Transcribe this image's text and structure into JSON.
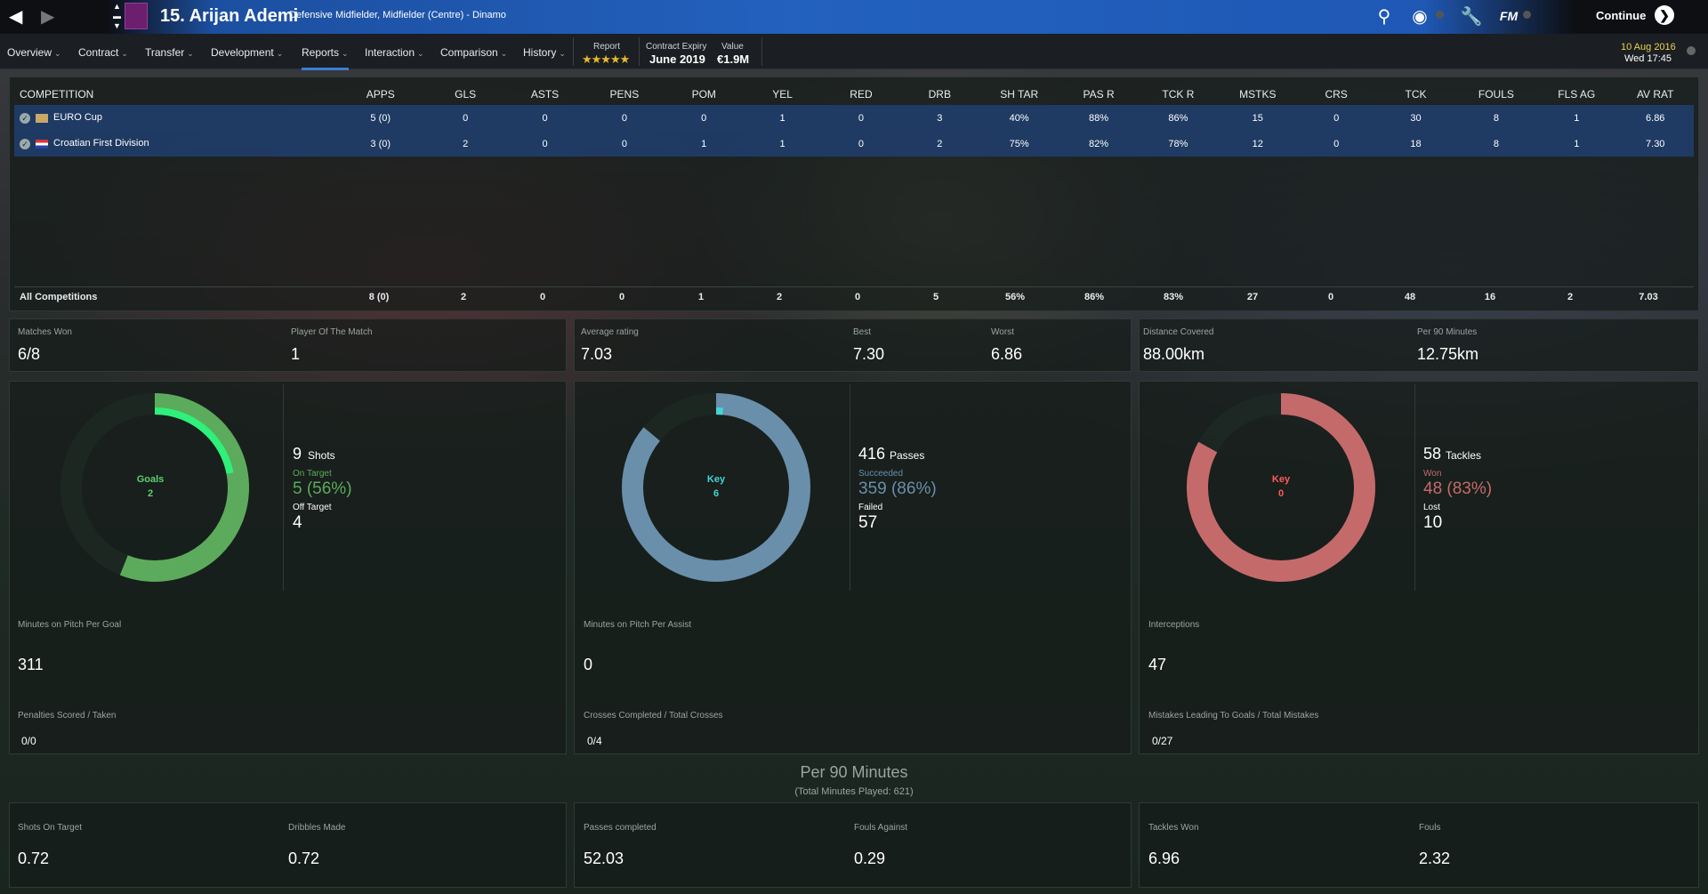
{
  "header": {
    "title": "15. Arijan Ademi",
    "subtitle": "Defensive Midfielder, Midfielder (Centre) - Dinamo",
    "continue_label": "Continue",
    "report_label": "Report",
    "report_stars": "★★★★★",
    "contract_label": "Contract Expiry",
    "contract_value": "June 2019",
    "value_label": "Value",
    "value_value": "€1.9M",
    "date": "10 Aug 2016",
    "time": "Wed 17:45"
  },
  "menu": [
    {
      "label": "Overview"
    },
    {
      "label": "Contract"
    },
    {
      "label": "Transfer"
    },
    {
      "label": "Development"
    },
    {
      "label": "Reports"
    },
    {
      "label": "Interaction"
    },
    {
      "label": "Comparison"
    },
    {
      "label": "History"
    }
  ],
  "table": {
    "headers": [
      "COMPETITION",
      "APPS",
      "GLS",
      "ASTS",
      "PENS",
      "POM",
      "YEL",
      "RED",
      "DRB",
      "SH TAR",
      "PAS R",
      "TCK R",
      "MSTKS",
      "CRS",
      "TCK",
      "FOULS",
      "FLS AG",
      "AV RAT"
    ],
    "rows": [
      [
        "EURO Cup",
        "5 (0)",
        "0",
        "0",
        "0",
        "0",
        "1",
        "0",
        "3",
        "40%",
        "88%",
        "86%",
        "15",
        "0",
        "30",
        "8",
        "1",
        "6.86"
      ],
      [
        "Croatian First Division",
        "3 (0)",
        "2",
        "0",
        "0",
        "1",
        "1",
        "0",
        "2",
        "75%",
        "82%",
        "78%",
        "12",
        "0",
        "18",
        "8",
        "1",
        "7.30"
      ]
    ],
    "total": [
      "All Competitions",
      "8 (0)",
      "2",
      "0",
      "0",
      "1",
      "2",
      "0",
      "5",
      "56%",
      "86%",
      "83%",
      "27",
      "0",
      "48",
      "16",
      "2",
      "7.03"
    ]
  },
  "summary": {
    "matches_won_label": "Matches Won",
    "matches_won": "6/8",
    "potm_label": "Player Of The Match",
    "potm": "1",
    "avg_rating_label": "Average rating",
    "avg_rating": "7.03",
    "best_label": "Best",
    "best": "7.30",
    "worst_label": "Worst",
    "worst": "6.86",
    "distance_label": "Distance Covered",
    "distance": "88.00km",
    "per90_label": "Per 90 Minutes",
    "per90": "12.75km"
  },
  "shooting": {
    "ring_label": "Goals",
    "ring_value": "2",
    "count": "9",
    "count_label": "Shots",
    "on_label": "On Target",
    "on_value": "5 (56%)",
    "off_label": "Off Target",
    "off_value": "4",
    "on_fraction": 0.56,
    "goal_fraction": 0.22,
    "min_label": "Minutes on Pitch Per Goal",
    "min_value": "311",
    "pen_label": "Penalties Scored / Taken",
    "pen_value": "0/0"
  },
  "passing": {
    "ring_label": "Key",
    "ring_value": "6",
    "count": "416",
    "count_label": "Passes",
    "on_label": "Succeeded",
    "on_value": "359 (86%)",
    "off_label": "Failed",
    "off_value": "57",
    "on_fraction": 0.86,
    "key_fraction": 0.014,
    "min_label": "Minutes on Pitch Per Assist",
    "min_value": "0",
    "cross_label": "Crosses Completed / Total Crosses",
    "cross_value": "0/4"
  },
  "tackling": {
    "ring_label": "Key",
    "ring_value": "0",
    "count": "58",
    "count_label": "Tackles",
    "on_label": "Won",
    "on_value": "48 (83%)",
    "off_label": "Lost",
    "off_value": "10",
    "on_fraction": 0.83,
    "int_label": "Interceptions",
    "int_value": "47",
    "mist_label": "Mistakes Leading To Goals / Total Mistakes",
    "mist_value": "0/27"
  },
  "per90": {
    "title": "Per 90 Minutes",
    "subtitle": "(Total Minutes Played: 621)",
    "items": [
      {
        "label": "Shots On Target",
        "value": "0.72"
      },
      {
        "label": "Dribbles Made",
        "value": "0.72"
      },
      {
        "label": "Passes completed",
        "value": "52.03"
      },
      {
        "label": "Fouls Against",
        "value": "0.29"
      },
      {
        "label": "Tackles Won",
        "value": "6.96"
      },
      {
        "label": "Fouls",
        "value": "2.32"
      }
    ]
  },
  "colors": {
    "green": "#5cab5c",
    "green_hi": "#2ef07a",
    "blue": "#6a8fab",
    "cyan": "#3fd6d6",
    "red": "#c56a6a"
  }
}
